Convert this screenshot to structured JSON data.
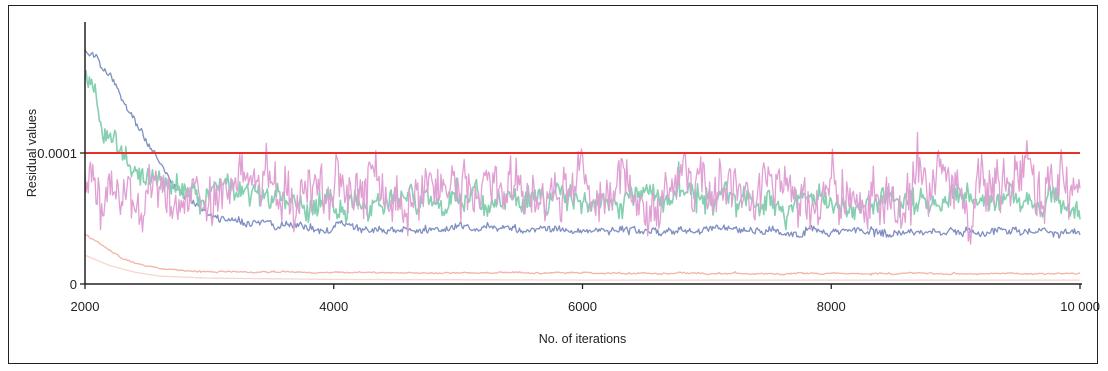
{
  "chart_data": {
    "type": "line",
    "title": "",
    "xlabel": "No. of iterations",
    "ylabel": "Residual values",
    "xlim": [
      2000,
      10000
    ],
    "ylim": [
      0,
      0.0002
    ],
    "x_ticks": [
      {
        "value": 2000,
        "label": "2000"
      },
      {
        "value": 4000,
        "label": "4000"
      },
      {
        "value": 6000,
        "label": "6000"
      },
      {
        "value": 8000,
        "label": "8000"
      },
      {
        "value": 10000,
        "label": "10 000"
      }
    ],
    "y_ticks": [
      {
        "value": 0,
        "label": "0"
      },
      {
        "value": 0.0001,
        "label": "0.0001"
      }
    ],
    "grid": false,
    "legend": "none",
    "threshold": {
      "value": 0.0001,
      "color": "#e8302a"
    },
    "series": [
      {
        "color": "#7f8fc2",
        "x": [
          2000,
          2100,
          2200,
          2300,
          2400,
          2500,
          2600,
          2700,
          2800,
          2900,
          3000,
          3200,
          3400,
          3600,
          3800,
          4000,
          5000,
          6000,
          7000,
          8000,
          9000,
          10000
        ],
        "values": [
          0.000178,
          0.000172,
          0.000158,
          0.000142,
          0.000126,
          0.00011,
          9.2e-05,
          7.8e-05,
          6.8e-05,
          6e-05,
          5.2e-05,
          4.8e-05,
          4.6e-05,
          4.4e-05,
          4.3e-05,
          4.2e-05,
          4.2e-05,
          4.1e-05,
          4.1e-05,
          4e-05,
          4e-05,
          3.9e-05
        ],
        "noise": 2.5e-06
      },
      {
        "color": "#86cfb0",
        "x": [
          2000,
          2100,
          2200,
          2300,
          2400,
          2500,
          2600,
          2700,
          2800,
          3000,
          3500,
          4000,
          5000,
          6000,
          7000,
          8000,
          9000,
          10000
        ],
        "values": [
          0.000158,
          0.000135,
          0.000108,
          9.6e-05,
          9e-05,
          8.4e-05,
          8e-05,
          7.6e-05,
          7.2e-05,
          6.8e-05,
          6.6e-05,
          6.5e-05,
          6.4e-05,
          6.4e-05,
          6.4e-05,
          6.3e-05,
          6.3e-05,
          6.3e-05
        ],
        "noise": 8e-06
      },
      {
        "color": "#e0a0d4",
        "x": [
          2000,
          2200,
          2400,
          2600,
          3000,
          4000,
          5000,
          6000,
          7000,
          8000,
          9000,
          10000
        ],
        "values": [
          7e-05,
          7.2e-05,
          7.4e-05,
          7.4e-05,
          7.2e-05,
          7.2e-05,
          7.1e-05,
          7.2e-05,
          7.2e-05,
          7.2e-05,
          7.1e-05,
          7.1e-05
        ],
        "noise": 1.7e-05
      },
      {
        "color": "#f2b5a8",
        "x": [
          2000,
          2100,
          2200,
          2300,
          2400,
          2500,
          2600,
          2800,
          3000,
          3500,
          4000,
          5000,
          6000,
          7000,
          8000,
          9000,
          10000
        ],
        "values": [
          3.8e-05,
          3.2e-05,
          2.5e-05,
          2e-05,
          1.6e-05,
          1.4e-05,
          1.2e-05,
          1e-05,
          9.5e-06,
          9e-06,
          9e-06,
          8.5e-06,
          8.5e-06,
          8e-06,
          8e-06,
          8e-06,
          8e-06
        ],
        "noise": 5e-07
      },
      {
        "color": "#f6d6cf",
        "x": [
          2000,
          2200,
          2400,
          2600,
          3000,
          4000,
          6000,
          8000,
          10000
        ],
        "values": [
          2.2e-05,
          1.4e-05,
          9e-06,
          6e-06,
          4.5e-06,
          3.5e-06,
          3e-06,
          3e-06,
          3e-06
        ],
        "noise": 0
      }
    ]
  }
}
